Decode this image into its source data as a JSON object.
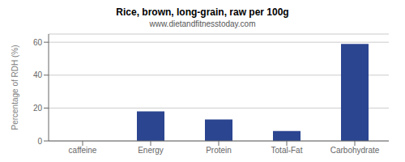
{
  "chart_data": {
    "type": "bar",
    "title": "Rice, brown, long-grain, raw per 100g",
    "subtitle": "www.dietandfitnesstoday.com",
    "categories": [
      "caffeine",
      "Energy",
      "Protein",
      "Total-Fat",
      "Carbohydrate"
    ],
    "values": [
      0,
      18,
      13,
      6,
      59
    ],
    "color": "#2B4590",
    "ylabel": "Percentage of RDH (%)",
    "ylim": [
      0,
      65
    ],
    "yticks": [
      0,
      20,
      40,
      60
    ],
    "grid": true
  }
}
